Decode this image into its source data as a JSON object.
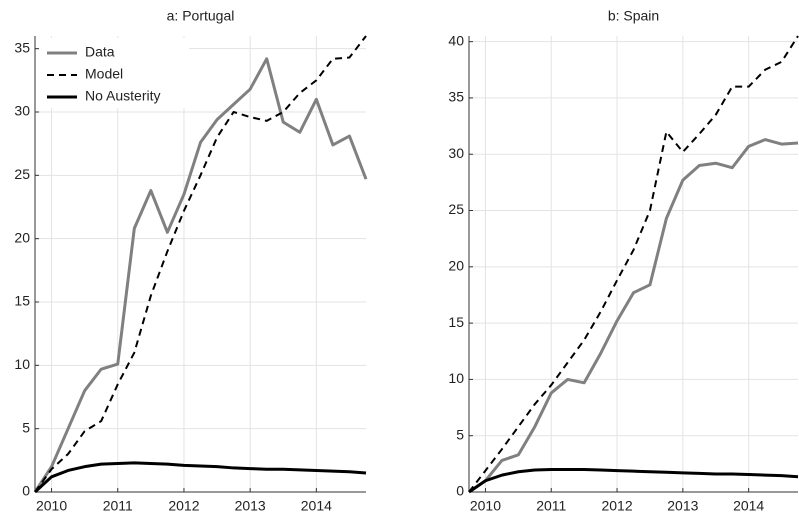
{
  "chart_data": [
    {
      "type": "line",
      "title": "a: Portugal",
      "x": [
        2009.75,
        2010,
        2010.25,
        2010.5,
        2010.75,
        2011,
        2011.25,
        2011.5,
        2011.75,
        2012,
        2012.25,
        2012.5,
        2012.75,
        2013,
        2013.25,
        2013.5,
        2013.75,
        2014,
        2014.25,
        2014.5,
        2014.75
      ],
      "xlim": [
        2009.75,
        2014.75
      ],
      "xticks": [
        2010,
        2011,
        2012,
        2013,
        2014
      ],
      "ylim": [
        0,
        36
      ],
      "yticks": [
        0,
        5,
        10,
        15,
        20,
        25,
        30,
        35
      ],
      "grid": true,
      "legend": "upper left",
      "series": [
        {
          "name": "Data",
          "color": "#808080",
          "style": "solid",
          "width": 3,
          "values": [
            0,
            2,
            5,
            8,
            9.7,
            10.1,
            20.8,
            23.8,
            20.5,
            23.5,
            27.6,
            29.4,
            30.6,
            31.8,
            34.2,
            29.2,
            28.4,
            31,
            27.4,
            28.1,
            24.7
          ]
        },
        {
          "name": "Model",
          "color": "#000000",
          "style": "dashed",
          "width": 2,
          "values": [
            0,
            1.8,
            3,
            4.8,
            5.6,
            8.5,
            11,
            15.5,
            19,
            22.2,
            25,
            28,
            30,
            29.6,
            29.3,
            30,
            31.5,
            32.5,
            34.2,
            34.3,
            36
          ]
        },
        {
          "name": "No Austerity",
          "color": "#000000",
          "style": "solid",
          "width": 3,
          "values": [
            0,
            1.2,
            1.7,
            2.0,
            2.2,
            2.25,
            2.3,
            2.25,
            2.2,
            2.1,
            2.05,
            2.0,
            1.9,
            1.85,
            1.8,
            1.8,
            1.75,
            1.7,
            1.65,
            1.6,
            1.5
          ]
        }
      ]
    },
    {
      "type": "line",
      "title": "b: Spain",
      "x": [
        2009.75,
        2010,
        2010.25,
        2010.5,
        2010.75,
        2011,
        2011.25,
        2011.5,
        2011.75,
        2012,
        2012.25,
        2012.5,
        2012.75,
        2013,
        2013.25,
        2013.5,
        2013.75,
        2014,
        2014.25,
        2014.5,
        2014.75
      ],
      "xlim": [
        2009.75,
        2014.75
      ],
      "xticks": [
        2010,
        2011,
        2012,
        2013,
        2014
      ],
      "ylim": [
        0,
        40.5
      ],
      "yticks": [
        0,
        5,
        10,
        15,
        20,
        25,
        30,
        35,
        40
      ],
      "grid": true,
      "series": [
        {
          "color": "#808080",
          "style": "solid",
          "width": 3,
          "values": [
            0,
            1,
            2.8,
            3.3,
            5.8,
            8.8,
            10,
            9.7,
            12.3,
            15.2,
            17.7,
            18.4,
            24.3,
            27.7,
            29,
            29.2,
            28.8,
            30.7,
            31.3,
            30.9,
            31
          ]
        },
        {
          "color": "#000000",
          "style": "dashed",
          "width": 2,
          "values": [
            0,
            1.9,
            3.8,
            5.8,
            7.8,
            9.5,
            11.5,
            13.5,
            16,
            18.8,
            21.5,
            25,
            32,
            30.2,
            31.8,
            33.5,
            36,
            36,
            37.5,
            38.2,
            40.5
          ]
        },
        {
          "color": "#000000",
          "style": "solid",
          "width": 3,
          "values": [
            0,
            1.0,
            1.5,
            1.8,
            1.95,
            2.0,
            2.0,
            2.0,
            1.95,
            1.9,
            1.85,
            1.8,
            1.75,
            1.7,
            1.65,
            1.6,
            1.6,
            1.55,
            1.5,
            1.45,
            1.35
          ]
        }
      ]
    }
  ]
}
